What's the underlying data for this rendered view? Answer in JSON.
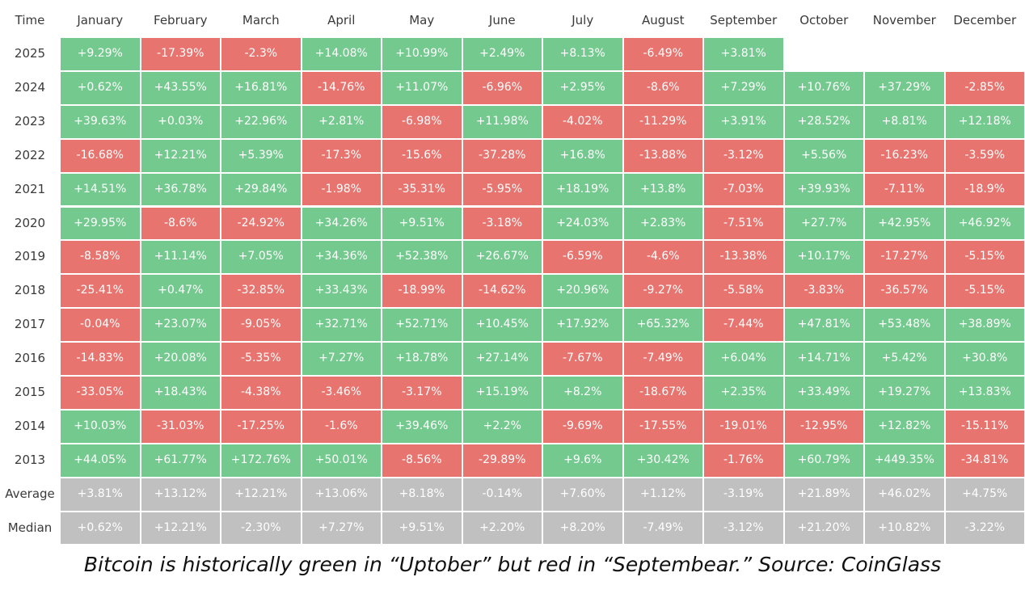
{
  "chart_data": {
    "type": "table",
    "corner_label": "Time",
    "columns": [
      "January",
      "February",
      "March",
      "April",
      "May",
      "June",
      "July",
      "August",
      "September",
      "October",
      "November",
      "December"
    ],
    "rows": [
      {
        "label": "2025",
        "values": [
          "+9.29%",
          "-17.39%",
          "-2.3%",
          "+14.08%",
          "+10.99%",
          "+2.49%",
          "+8.13%",
          "-6.49%",
          "+3.81%",
          null,
          null,
          null
        ]
      },
      {
        "label": "2024",
        "values": [
          "+0.62%",
          "+43.55%",
          "+16.81%",
          "-14.76%",
          "+11.07%",
          "-6.96%",
          "+2.95%",
          "-8.6%",
          "+7.29%",
          "+10.76%",
          "+37.29%",
          "-2.85%"
        ]
      },
      {
        "label": "2023",
        "values": [
          "+39.63%",
          "+0.03%",
          "+22.96%",
          "+2.81%",
          "-6.98%",
          "+11.98%",
          "-4.02%",
          "-11.29%",
          "+3.91%",
          "+28.52%",
          "+8.81%",
          "+12.18%"
        ]
      },
      {
        "label": "2022",
        "values": [
          "-16.68%",
          "+12.21%",
          "+5.39%",
          "-17.3%",
          "-15.6%",
          "-37.28%",
          "+16.8%",
          "-13.88%",
          "-3.12%",
          "+5.56%",
          "-16.23%",
          "-3.59%"
        ]
      },
      {
        "label": "2021",
        "values": [
          "+14.51%",
          "+36.78%",
          "+29.84%",
          "-1.98%",
          "-35.31%",
          "-5.95%",
          "+18.19%",
          "+13.8%",
          "-7.03%",
          "+39.93%",
          "-7.11%",
          "-18.9%"
        ]
      },
      {
        "label": "2020",
        "values": [
          "+29.95%",
          "-8.6%",
          "-24.92%",
          "+34.26%",
          "+9.51%",
          "-3.18%",
          "+24.03%",
          "+2.83%",
          "-7.51%",
          "+27.7%",
          "+42.95%",
          "+46.92%"
        ]
      },
      {
        "label": "2019",
        "values": [
          "-8.58%",
          "+11.14%",
          "+7.05%",
          "+34.36%",
          "+52.38%",
          "+26.67%",
          "-6.59%",
          "-4.6%",
          "-13.38%",
          "+10.17%",
          "-17.27%",
          "-5.15%"
        ]
      },
      {
        "label": "2018",
        "values": [
          "-25.41%",
          "+0.47%",
          "-32.85%",
          "+33.43%",
          "-18.99%",
          "-14.62%",
          "+20.96%",
          "-9.27%",
          "-5.58%",
          "-3.83%",
          "-36.57%",
          "-5.15%"
        ]
      },
      {
        "label": "2017",
        "values": [
          "-0.04%",
          "+23.07%",
          "-9.05%",
          "+32.71%",
          "+52.71%",
          "+10.45%",
          "+17.92%",
          "+65.32%",
          "-7.44%",
          "+47.81%",
          "+53.48%",
          "+38.89%"
        ]
      },
      {
        "label": "2016",
        "values": [
          "-14.83%",
          "+20.08%",
          "-5.35%",
          "+7.27%",
          "+18.78%",
          "+27.14%",
          "-7.67%",
          "-7.49%",
          "+6.04%",
          "+14.71%",
          "+5.42%",
          "+30.8%"
        ]
      },
      {
        "label": "2015",
        "values": [
          "-33.05%",
          "+18.43%",
          "-4.38%",
          "-3.46%",
          "-3.17%",
          "+15.19%",
          "+8.2%",
          "-18.67%",
          "+2.35%",
          "+33.49%",
          "+19.27%",
          "+13.83%"
        ]
      },
      {
        "label": "2014",
        "values": [
          "+10.03%",
          "-31.03%",
          "-17.25%",
          "-1.6%",
          "+39.46%",
          "+2.2%",
          "-9.69%",
          "-17.55%",
          "-19.01%",
          "-12.95%",
          "+12.82%",
          "-15.11%"
        ]
      },
      {
        "label": "2013",
        "values": [
          "+44.05%",
          "+61.77%",
          "+172.76%",
          "+50.01%",
          "-8.56%",
          "-29.89%",
          "+9.6%",
          "+30.42%",
          "-1.76%",
          "+60.79%",
          "+449.35%",
          "-34.81%"
        ]
      }
    ],
    "summary_rows": [
      {
        "label": "Average",
        "values": [
          "+3.81%",
          "+13.12%",
          "+12.21%",
          "+13.06%",
          "+8.18%",
          "-0.14%",
          "+7.60%",
          "+1.12%",
          "-3.19%",
          "+21.89%",
          "+46.02%",
          "+4.75%"
        ]
      },
      {
        "label": "Median",
        "values": [
          "+0.62%",
          "+12.21%",
          "-2.30%",
          "+7.27%",
          "+9.51%",
          "+2.20%",
          "+8.20%",
          "-7.49%",
          "-3.12%",
          "+21.20%",
          "+10.82%",
          "-3.22%"
        ]
      }
    ],
    "colors": {
      "positive": "#74c98e",
      "negative": "#e8746f",
      "summary": "#c0c0c0",
      "cell_text": "#ffffff",
      "label_text": "#3a3a3a"
    }
  },
  "caption": "Bitcoin is historically green in “Uptober” but red in “Septembear.” Source: CoinGlass"
}
